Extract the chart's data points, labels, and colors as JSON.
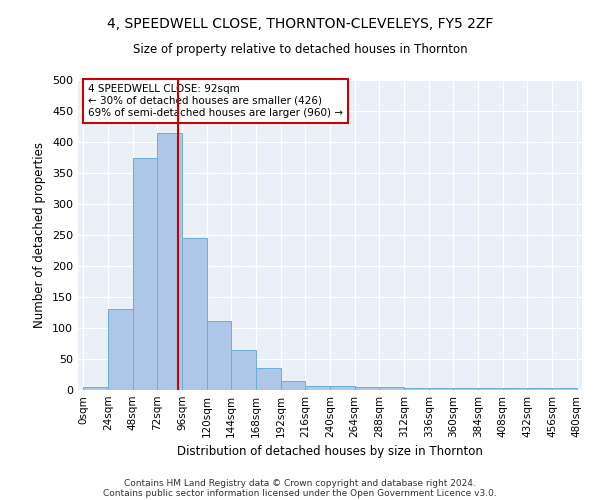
{
  "title": "4, SPEEDWELL CLOSE, THORNTON-CLEVELEYS, FY5 2ZF",
  "subtitle": "Size of property relative to detached houses in Thornton",
  "xlabel": "Distribution of detached houses by size in Thornton",
  "ylabel": "Number of detached properties",
  "footnote1": "Contains HM Land Registry data © Crown copyright and database right 2024.",
  "footnote2": "Contains public sector information licensed under the Open Government Licence v3.0.",
  "annotation_line1": "4 SPEEDWELL CLOSE: 92sqm",
  "annotation_line2": "← 30% of detached houses are smaller (426)",
  "annotation_line3": "69% of semi-detached houses are larger (960) →",
  "property_size": 92,
  "bin_edges": [
    0,
    24,
    48,
    72,
    96,
    120,
    144,
    168,
    192,
    216,
    240,
    264,
    288,
    312,
    336,
    360,
    384,
    408,
    432,
    456,
    480
  ],
  "bar_heights": [
    5,
    130,
    375,
    415,
    245,
    112,
    65,
    35,
    14,
    7,
    7,
    5,
    5,
    4,
    4,
    4,
    4,
    4,
    4,
    4
  ],
  "bar_color": "#aec6e8",
  "bar_edge_color": "#6baed6",
  "vline_color": "#cc0000",
  "vline_x": 92,
  "annotation_box_color": "#cc0000",
  "background_color": "#eaf0f8",
  "ylim": [
    0,
    500
  ],
  "yticks": [
    0,
    50,
    100,
    150,
    200,
    250,
    300,
    350,
    400,
    450,
    500
  ]
}
